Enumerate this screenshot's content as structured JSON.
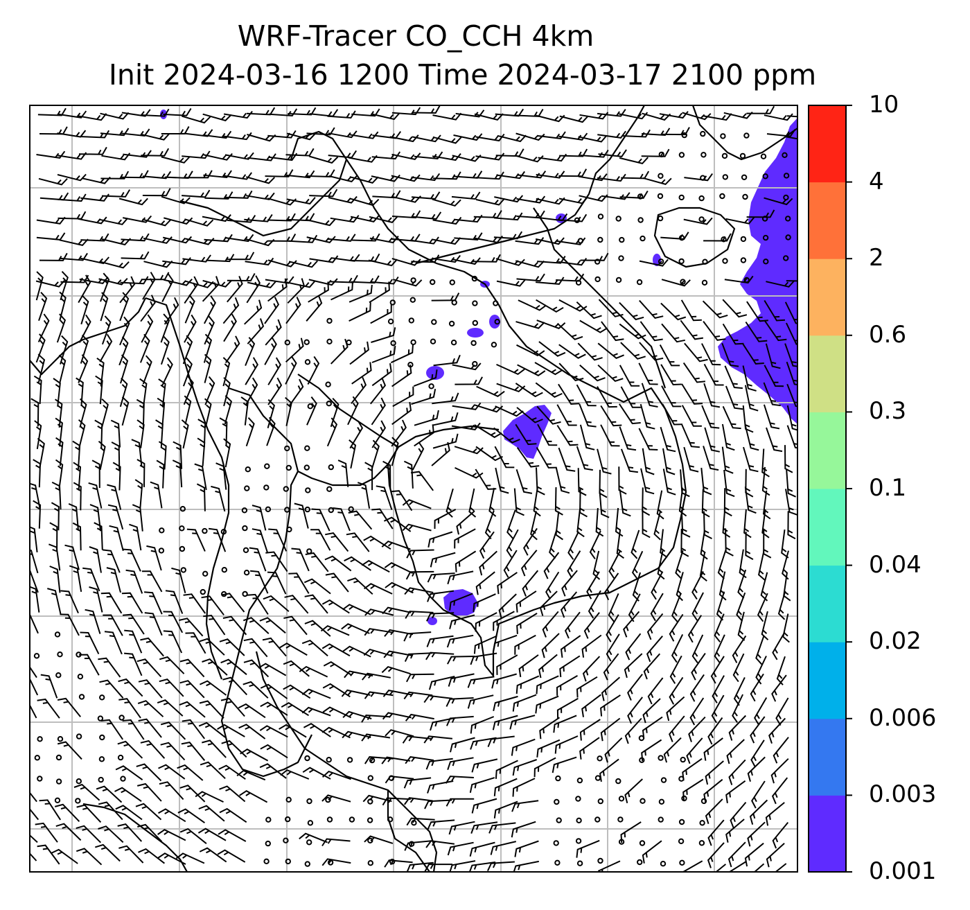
{
  "title": {
    "line1": "WRF-Tracer CO_CCH 4km",
    "line2": "Init 2024-03-16 1200 Time 2024-03-17 2100 ppm"
  },
  "colorbar": {
    "levels": [
      "0.001",
      "0.003",
      "0.006",
      "0.02",
      "0.04",
      "0.1",
      "0.3",
      "0.6",
      "2",
      "4",
      "10"
    ],
    "colors": [
      "#5f2bff",
      "#3478f0",
      "#00b0ea",
      "#2cdcd2",
      "#62f7bc",
      "#96f79a",
      "#cfe085",
      "#fdb25f",
      "#ff7139",
      "#ff2415"
    ]
  },
  "map": {
    "field": "CO_CCH tracer concentration with wind barbs and coastlines",
    "tracer_color": "#5f2bff",
    "grid_color": "#bdbdbd"
  }
}
